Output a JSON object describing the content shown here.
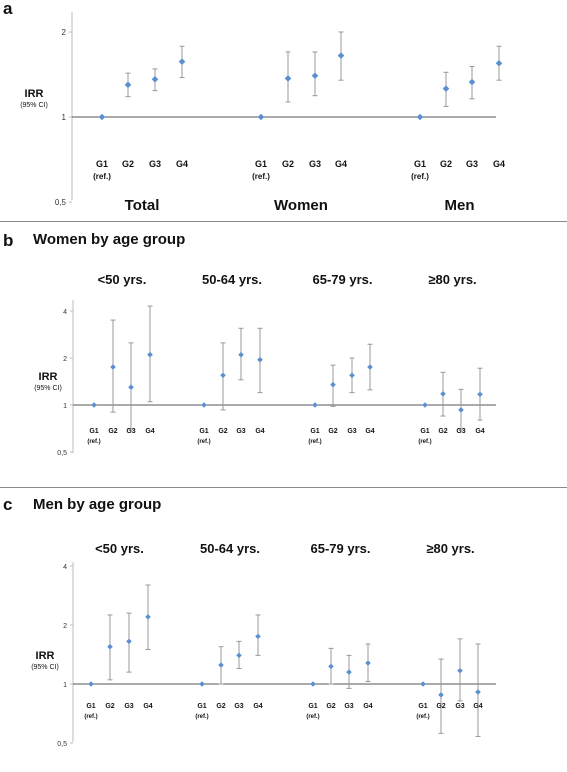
{
  "chart_data": [
    {
      "type": "scatter",
      "panel_letter": "a",
      "title": "",
      "ylabel": "IRR",
      "ylabel_sub": "(95% CI)",
      "yscale": "log",
      "ylim": [
        0.5,
        2.4
      ],
      "yticks": [
        "0,5",
        "1",
        "2"
      ],
      "reference_line": 1,
      "category_labels": [
        "G1\n(ref.)",
        "G2",
        "G3",
        "G4"
      ],
      "groups": [
        {
          "name": "Total",
          "points": [
            {
              "label": "G1",
              "value": 1.0,
              "lo": 1.0,
              "hi": 1.0
            },
            {
              "label": "G2",
              "value": 1.3,
              "lo": 1.18,
              "hi": 1.43
            },
            {
              "label": "G3",
              "value": 1.36,
              "lo": 1.24,
              "hi": 1.48
            },
            {
              "label": "G4",
              "value": 1.57,
              "lo": 1.38,
              "hi": 1.78
            }
          ]
        },
        {
          "name": "Women",
          "points": [
            {
              "label": "G1",
              "value": 1.0,
              "lo": 1.0,
              "hi": 1.0
            },
            {
              "label": "G2",
              "value": 1.37,
              "lo": 1.13,
              "hi": 1.7
            }
          ],
          "_": null
        },
        {
          "name": "Men",
          "points": [
            {
              "label": "G1",
              "value": 1.0,
              "lo": 1.0,
              "hi": 1.0
            },
            {
              "label": "G2",
              "value": 1.26,
              "lo": 1.09,
              "hi": 1.44
            },
            {
              "label": "G3",
              "value": 1.33,
              "lo": 1.16,
              "hi": 1.51
            },
            {
              "label": "G4",
              "value": 1.55,
              "lo": 1.35,
              "hi": 1.78
            }
          ]
        }
      ]
    },
    {
      "type": "scatter",
      "panel_letter": "b",
      "title": "Women by age group",
      "ylabel": "IRR",
      "ylabel_sub": "(95% CI)",
      "yscale": "log",
      "ylim": [
        0.5,
        4.5
      ],
      "yticks": [
        "0,5",
        "1",
        "2",
        "4"
      ],
      "reference_line": 1,
      "category_labels": [
        "G1\n(ref.)",
        "G2",
        "G3",
        "G4"
      ],
      "groups": [
        {
          "name": "<50 yrs.",
          "points": [
            {
              "label": "G1",
              "value": 1.0,
              "lo": 1.0,
              "hi": 1.0
            },
            {
              "label": "G2",
              "value": 1.75,
              "lo": 0.9,
              "hi": 3.5
            },
            {
              "label": "G3",
              "value": 1.3,
              "lo": 0.7,
              "hi": 2.5
            },
            {
              "label": "G4",
              "value": 2.1,
              "lo": 1.05,
              "hi": 4.3
            }
          ]
        },
        {
          "name": "50-64 yrs.",
          "points": [
            {
              "label": "G1",
              "value": 1.0,
              "lo": 1.0,
              "hi": 1.0
            },
            {
              "label": "G2",
              "value": 1.55,
              "lo": 0.93,
              "hi": 2.5
            },
            {
              "label": "G3",
              "value": 2.1,
              "lo": 1.45,
              "hi": 3.1
            },
            {
              "label": "G4",
              "value": 1.95,
              "lo": 1.2,
              "hi": 3.1
            }
          ]
        },
        {
          "name": "65-79 yrs.",
          "points": [
            {
              "label": "G1",
              "value": 1.0,
              "lo": 1.0,
              "hi": 1.0
            },
            {
              "label": "G2",
              "value": 1.35,
              "lo": 0.98,
              "hi": 1.8
            },
            {
              "label": "G3",
              "value": 1.55,
              "lo": 1.2,
              "hi": 2.0
            },
            {
              "label": "G4",
              "value": 1.75,
              "lo": 1.25,
              "hi": 2.45
            }
          ]
        },
        {
          "name": "≥80 yrs.",
          "points": [
            {
              "label": "G1",
              "value": 1.0,
              "lo": 1.0,
              "hi": 1.0
            },
            {
              "label": "G2",
              "value": 1.18,
              "lo": 0.85,
              "hi": 1.62
            },
            {
              "label": "G3",
              "value": 0.93,
              "lo": 0.7,
              "hi": 1.26
            },
            {
              "label": "G4",
              "value": 1.17,
              "lo": 0.8,
              "hi": 1.72
            }
          ]
        }
      ]
    },
    {
      "type": "scatter",
      "panel_letter": "c",
      "title": "Men by age group",
      "ylabel": "IRR",
      "ylabel_sub": "(95% CI)",
      "yscale": "log",
      "ylim": [
        0.5,
        4.5
      ],
      "yticks": [
        "0,5",
        "1",
        "2",
        "4"
      ],
      "reference_line": 1,
      "category_labels": [
        "G1\n(ref.)",
        "G2",
        "G3",
        "G4"
      ],
      "groups": [
        {
          "name": "<50 yrs.",
          "points": [
            {
              "label": "G1",
              "value": 1.0,
              "lo": 1.0,
              "hi": 1.0
            },
            {
              "label": "G2",
              "value": 1.55,
              "lo": 1.05,
              "hi": 2.25
            },
            {
              "label": "G3",
              "value": 1.65,
              "lo": 1.15,
              "hi": 2.3
            },
            {
              "label": "G4",
              "value": 2.2,
              "lo": 1.5,
              "hi": 3.2
            }
          ]
        },
        {
          "name": "50-64 yrs.",
          "points": [
            {
              "label": "G1",
              "value": 1.0,
              "lo": 1.0,
              "hi": 1.0
            },
            {
              "label": "G2",
              "value": 1.25,
              "lo": 1.0,
              "hi": 1.55
            },
            {
              "label": "G3",
              "value": 1.4,
              "lo": 1.2,
              "hi": 1.65
            },
            {
              "label": "G4",
              "value": 1.75,
              "lo": 1.4,
              "hi": 2.25
            }
          ]
        },
        {
          "name": "65-79 yrs.",
          "points": [
            {
              "label": "G1",
              "value": 1.0,
              "lo": 1.0,
              "hi": 1.0
            },
            {
              "label": "G2",
              "value": 1.23,
              "lo": 1.0,
              "hi": 1.52
            },
            {
              "label": "G3",
              "value": 1.15,
              "lo": 0.95,
              "hi": 1.4
            },
            {
              "label": "G4",
              "value": 1.28,
              "lo": 1.03,
              "hi": 1.6
            }
          ]
        },
        {
          "name": "≥80 yrs.",
          "points": [
            {
              "label": "G1",
              "value": 1.0,
              "lo": 1.0,
              "hi": 1.0
            },
            {
              "label": "G2",
              "value": 0.88,
              "lo": 0.56,
              "hi": 1.34
            },
            {
              "label": "G3",
              "value": 1.17,
              "lo": 0.82,
              "hi": 1.7
            },
            {
              "label": "G4",
              "value": 0.91,
              "lo": 0.54,
              "hi": 1.6
            }
          ]
        }
      ]
    }
  ]
}
